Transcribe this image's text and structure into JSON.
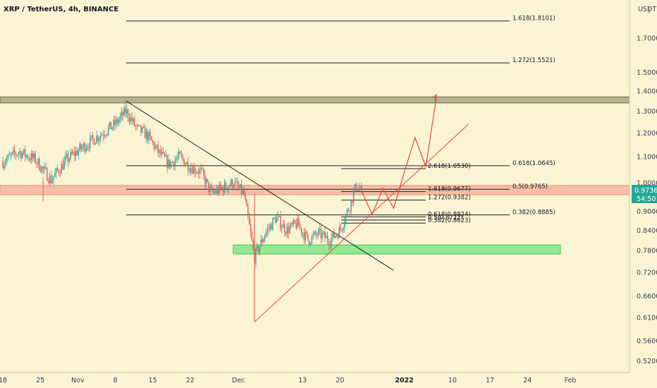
{
  "header": {
    "title": "XRP / TetherUS, 4h, BINANCE"
  },
  "price_axis": {
    "unit": "USDT",
    "ticks": [
      "1.7000",
      "1.5000",
      "1.4000",
      "1.3000",
      "1.2000",
      "1.1000",
      "1.0000",
      "0.9000",
      "0.8400",
      "0.7800",
      "0.7200",
      "0.6600",
      "0.6100",
      "0.5600",
      "0.5200"
    ],
    "current_price": "0.9736",
    "countdown": "54:50"
  },
  "time_axis": {
    "ticks": [
      "18",
      "25",
      "Nov",
      "8",
      "15",
      "22",
      "Dec",
      "13",
      "20",
      "2022",
      "10",
      "17",
      "24",
      "Feb"
    ]
  },
  "colors": {
    "background": "#fbf4d4",
    "up_candle": "#26a69a",
    "down_candle": "#ef5350",
    "resistance_zone": "#b5b38c",
    "sell_zone": "#f7b9a0",
    "support_zone": "#8ee890",
    "projection": "#e8473a",
    "price_label": "#26a69a"
  },
  "annotations": {
    "fib_upper": [
      "1.618(1.8101)",
      "1.272(1.5521)"
    ],
    "fib_right": [
      "0.618(1.0645)",
      "0.5(0.9765)",
      "0.382(0.8885)"
    ],
    "fib_inner": [
      "2.618(1.0530)",
      "1.618(0.9677)",
      "1.272(0.9382)",
      "0.618(0.8824)",
      "0.5(0.8722)",
      "0.382(0.8623)"
    ]
  },
  "chart_data": {
    "type": "candlestick",
    "title": "XRP / TetherUS, 4h, BINANCE",
    "y_scale": "log",
    "ylim": [
      0.5,
      1.95
    ],
    "x_range": [
      "2021-10-18",
      "2022-02-01"
    ],
    "close_series": [
      [
        "2021-10-18",
        1.08
      ],
      [
        "2021-10-21",
        1.12
      ],
      [
        "2021-10-24",
        1.09
      ],
      [
        "2021-10-27",
        1.01
      ],
      [
        "2021-10-30",
        1.09
      ],
      [
        "2021-11-02",
        1.14
      ],
      [
        "2021-11-05",
        1.19
      ],
      [
        "2021-11-08",
        1.24
      ],
      [
        "2021-11-10",
        1.3
      ],
      [
        "2021-11-12",
        1.22
      ],
      [
        "2021-11-14",
        1.19
      ],
      [
        "2021-11-16",
        1.12
      ],
      [
        "2021-11-18",
        1.07
      ],
      [
        "2021-11-20",
        1.1
      ],
      [
        "2021-11-22",
        1.06
      ],
      [
        "2021-11-24",
        1.04
      ],
      [
        "2021-11-26",
        0.96
      ],
      [
        "2021-11-28",
        0.98
      ],
      [
        "2021-11-30",
        1.0
      ],
      [
        "2021-12-02",
        0.96
      ],
      [
        "2021-12-04",
        0.76
      ],
      [
        "2021-12-06",
        0.83
      ],
      [
        "2021-12-08",
        0.88
      ],
      [
        "2021-12-10",
        0.84
      ],
      [
        "2021-12-12",
        0.86
      ],
      [
        "2021-12-14",
        0.81
      ],
      [
        "2021-12-16",
        0.83
      ],
      [
        "2021-12-18",
        0.81
      ],
      [
        "2021-12-20",
        0.84
      ],
      [
        "2021-12-22",
        0.93
      ],
      [
        "2021-12-23",
        0.99
      ],
      [
        "2021-12-24",
        0.97
      ]
    ],
    "current_price": 0.9736,
    "zones": [
      {
        "kind": "resistance",
        "from_price": 1.34,
        "to_price": 1.37
      },
      {
        "kind": "sell",
        "from_price": 0.957,
        "to_price": 0.99
      },
      {
        "kind": "support",
        "from_price": 0.77,
        "to_price": 0.796
      }
    ],
    "fib_levels": [
      {
        "label": "1.618(1.8101)",
        "price": 1.8101
      },
      {
        "label": "1.272(1.5521)",
        "price": 1.5521
      },
      {
        "label": "0.618(1.0645)",
        "price": 1.0645
      },
      {
        "label": "2.618(1.0530)",
        "price": 1.053
      },
      {
        "label": "0.5(0.9765)",
        "price": 0.9765
      },
      {
        "label": "1.618(0.9677)",
        "price": 0.9677
      },
      {
        "label": "1.272(0.9382)",
        "price": 0.9382
      },
      {
        "label": "0.382(0.8885)",
        "price": 0.8885
      },
      {
        "label": "0.618(0.8824)",
        "price": 0.8824
      },
      {
        "label": "0.5(0.8722)",
        "price": 0.8722
      },
      {
        "label": "0.382(0.8623)",
        "price": 0.8623
      }
    ],
    "trendlines": [
      {
        "name": "downtrend",
        "from": [
          "2021-11-10",
          1.35
        ],
        "to": [
          "2021-12-30",
          0.725
        ]
      },
      {
        "name": "uptrend",
        "from": [
          "2021-12-04",
          0.6
        ],
        "to": [
          "2022-01-13",
          1.24
        ]
      }
    ],
    "projection_path": [
      [
        "2021-12-24",
        0.97
      ],
      [
        "2021-12-26",
        0.89
      ],
      [
        "2021-12-28",
        0.98
      ],
      [
        "2021-12-30",
        0.91
      ],
      [
        "2022-01-01",
        1.04
      ],
      [
        "2022-01-03",
        1.18
      ],
      [
        "2022-01-05",
        1.06
      ],
      [
        "2022-01-07",
        1.37
      ]
    ]
  }
}
